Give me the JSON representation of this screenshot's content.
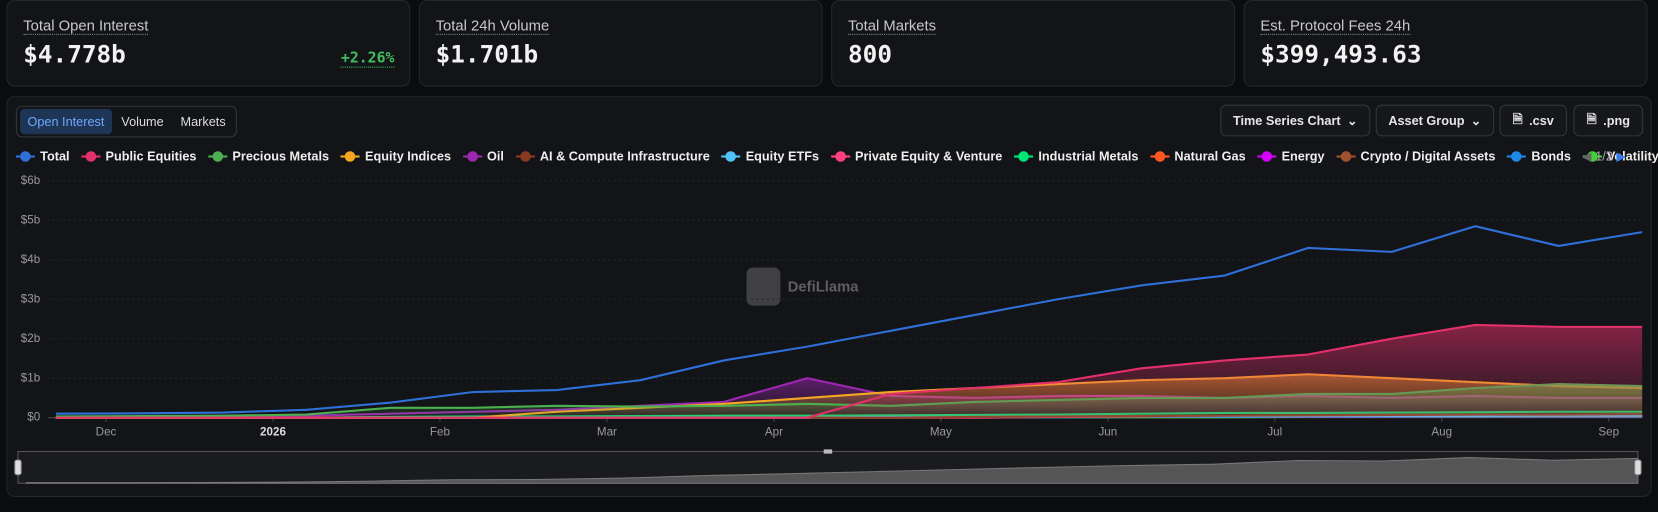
{
  "stats": [
    {
      "label": "Total Open Interest",
      "value": "$4.778b",
      "change": "+2.26%"
    },
    {
      "label": "Total 24h Volume",
      "value": "$1.701b"
    },
    {
      "label": "Total Markets",
      "value": "800"
    },
    {
      "label": "Est. Protocol Fees 24h",
      "value": "$399,493.63"
    }
  ],
  "tabs": [
    "Open Interest",
    "Volume",
    "Markets"
  ],
  "active_tab": 0,
  "controls": {
    "chart_type": "Time Series Chart",
    "group": "Asset Group",
    "csv": ".csv",
    "png": ".png"
  },
  "chart_data": {
    "type": "line",
    "watermark": "DefiLlama",
    "legend_page": "1/2",
    "x": [
      -0.3,
      0.2,
      0.7,
      1.2,
      1.7,
      2.2,
      2.7,
      3.2,
      3.7,
      4.2,
      4.7,
      5.2,
      5.7,
      6.2,
      6.7,
      7.2,
      7.7,
      8.2,
      8.7,
      9.2
    ],
    "xlim": [
      -0.35,
      9.2
    ],
    "xticks": [
      {
        "value": 0,
        "label": "Dec"
      },
      {
        "value": 1,
        "label": "2026",
        "bold": true
      },
      {
        "value": 2,
        "label": "Feb"
      },
      {
        "value": 3,
        "label": "Mar"
      },
      {
        "value": 4,
        "label": "Apr"
      },
      {
        "value": 5,
        "label": "May"
      },
      {
        "value": 6,
        "label": "Jun"
      },
      {
        "value": 7,
        "label": "Jul"
      },
      {
        "value": 8,
        "label": "Aug"
      },
      {
        "value": 9,
        "label": "Sep"
      }
    ],
    "ylim": [
      0,
      6
    ],
    "yticks": [
      {
        "value": 0,
        "label": "$0"
      },
      {
        "value": 1,
        "label": "$1b"
      },
      {
        "value": 2,
        "label": "$2b"
      },
      {
        "value": 3,
        "label": "$3b"
      },
      {
        "value": 4,
        "label": "$4b"
      },
      {
        "value": 5,
        "label": "$5b"
      },
      {
        "value": 6,
        "label": "$6b"
      }
    ],
    "grid": true,
    "series": [
      {
        "name": "Total",
        "color": "#2f6fd8",
        "area": false,
        "values": [
          0.1,
          0.11,
          0.13,
          0.2,
          0.38,
          0.65,
          0.7,
          0.95,
          1.45,
          1.8,
          2.2,
          2.6,
          3.0,
          3.35,
          3.6,
          4.3,
          4.2,
          4.85,
          4.35,
          4.7
        ]
      },
      {
        "name": "Public Equities",
        "color": "#e3306b",
        "area": true,
        "values": [
          0,
          0,
          0,
          0,
          0,
          0,
          0,
          0,
          0,
          0,
          0.6,
          0.75,
          0.9,
          1.25,
          1.45,
          1.6,
          2.0,
          2.35,
          2.3,
          2.3
        ]
      },
      {
        "name": "Precious Metals",
        "color": "#4caf50",
        "area": true,
        "values": [
          0.03,
          0.04,
          0.05,
          0.08,
          0.25,
          0.25,
          0.3,
          0.28,
          0.3,
          0.35,
          0.3,
          0.4,
          0.45,
          0.5,
          0.5,
          0.6,
          0.6,
          0.75,
          0.85,
          0.8
        ]
      },
      {
        "name": "Equity Indices",
        "color": "#f5a623",
        "area": true,
        "values": [
          0,
          0,
          0,
          0,
          0,
          0,
          0.15,
          0.25,
          0.35,
          0.5,
          0.65,
          0.75,
          0.85,
          0.95,
          1.0,
          1.1,
          1.0,
          0.9,
          0.8,
          0.75
        ]
      },
      {
        "name": "Oil",
        "color": "#9c27b0",
        "area": true,
        "values": [
          0.02,
          0.02,
          0.03,
          0.05,
          0.1,
          0.15,
          0.2,
          0.3,
          0.4,
          1.0,
          0.55,
          0.5,
          0.55,
          0.55,
          0.5,
          0.55,
          0.5,
          0.55,
          0.5,
          0.5
        ]
      },
      {
        "name": "AI & Compute Infrastructure",
        "color": "#8a3a1e",
        "area": false,
        "values": [
          0,
          0,
          0,
          0,
          0,
          0,
          0,
          0,
          0,
          0,
          0,
          0.02,
          0.03,
          0.04,
          0.05,
          0.06,
          0.07,
          0.08,
          0.08,
          0.09
        ]
      },
      {
        "name": "Equity ETFs",
        "color": "#4fc3f7",
        "area": false,
        "values": [
          0,
          0,
          0,
          0,
          0,
          0,
          0,
          0,
          0,
          0,
          0.02,
          0.02,
          0.03,
          0.03,
          0.03,
          0.04,
          0.04,
          0.04,
          0.05,
          0.05
        ]
      },
      {
        "name": "Private Equity & Venture",
        "color": "#ff4081",
        "area": false,
        "values": [
          0,
          0,
          0,
          0,
          0,
          0,
          0,
          0,
          0,
          0,
          0,
          0,
          0.02,
          0.03,
          0.03,
          0.04,
          0.05,
          0.05,
          0.05,
          0.05
        ]
      },
      {
        "name": "Industrial Metals",
        "color": "#00e676",
        "area": false,
        "values": [
          0,
          0,
          0,
          0,
          0.02,
          0.03,
          0.03,
          0.04,
          0.05,
          0.05,
          0.06,
          0.07,
          0.08,
          0.1,
          0.12,
          0.12,
          0.13,
          0.14,
          0.15,
          0.15
        ]
      },
      {
        "name": "Natural Gas",
        "color": "#ff5722",
        "area": false,
        "values": [
          0,
          0,
          0,
          0,
          0.01,
          0.01,
          0.01,
          0.02,
          0.02,
          0.02,
          0.02,
          0.03,
          0.03,
          0.03,
          0.03,
          0.04,
          0.04,
          0.04,
          0.04,
          0.04
        ]
      },
      {
        "name": "Energy",
        "color": "#d500f9",
        "area": false,
        "values": [
          0,
          0,
          0,
          0,
          0,
          0,
          0,
          0.01,
          0.01,
          0.02,
          0.02,
          0.02,
          0.03,
          0.03,
          0.03,
          0.03,
          0.03,
          0.04,
          0.04,
          0.04
        ]
      },
      {
        "name": "Crypto / Digital Assets",
        "color": "#a0522d",
        "area": false,
        "values": [
          0,
          0,
          0,
          0,
          0,
          0,
          0,
          0,
          0,
          0.01,
          0.01,
          0.02,
          0.02,
          0.02,
          0.03,
          0.03,
          0.03,
          0.03,
          0.04,
          0.04
        ]
      },
      {
        "name": "Bonds",
        "color": "#1e88e5",
        "area": false,
        "values": [
          0,
          0,
          0,
          0,
          0,
          0,
          0,
          0,
          0,
          0,
          0.01,
          0.01,
          0.01,
          0.02,
          0.02,
          0.02,
          0.02,
          0.02,
          0.02,
          0.02
        ]
      },
      {
        "name": "Volatility",
        "color": "#43d13a",
        "area": false,
        "values": [
          0,
          0,
          0,
          0,
          0,
          0,
          0,
          0,
          0,
          0,
          0,
          0.01,
          0.01,
          0.01,
          0.01,
          0.02,
          0.02,
          0.02,
          0.02,
          0.02
        ]
      }
    ]
  }
}
